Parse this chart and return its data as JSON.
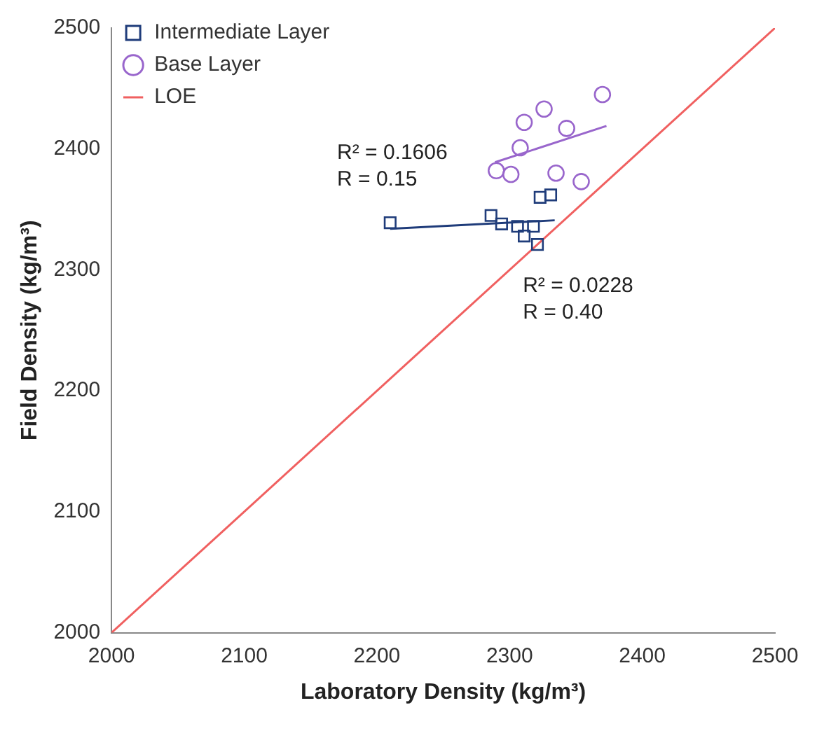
{
  "chart_data": {
    "type": "scatter",
    "xlabel": "Laboratory Density (kg/m³)",
    "ylabel": "Field Density (kg/m³)",
    "xlim": [
      2000,
      2500
    ],
    "ylim": [
      2000,
      2500
    ],
    "xticks": [
      2000,
      2100,
      2200,
      2300,
      2400,
      2500
    ],
    "yticks": [
      2000,
      2100,
      2200,
      2300,
      2400,
      2500
    ],
    "grid": false,
    "legend": "top left",
    "series": [
      {
        "name": "Intermediate Layer",
        "type": "scatter",
        "marker": "square",
        "color": "#1f3c7a",
        "x": [
          2210,
          2286,
          2294,
          2306,
          2318,
          2311,
          2321,
          2323,
          2331
        ],
        "values": [
          2339,
          2345,
          2338,
          2336,
          2336,
          2328,
          2321,
          2360,
          2362
        ]
      },
      {
        "name": "Base Layer",
        "type": "scatter",
        "marker": "circle",
        "color": "#9966cc",
        "x": [
          2370,
          2326,
          2311,
          2343,
          2308,
          2290,
          2301,
          2335,
          2354
        ],
        "values": [
          2445,
          2433,
          2422,
          2417,
          2401,
          2382,
          2379,
          2380,
          2373
        ]
      },
      {
        "name": "LOE",
        "type": "line",
        "marker": "none",
        "color": "#f06060",
        "x": [
          2000,
          2500
        ],
        "values": [
          2000,
          2500
        ]
      },
      {
        "type": "line",
        "marker": "none",
        "color": "#1f3c7a",
        "x": [
          2210,
          2334
        ],
        "values": [
          2334,
          2341
        ]
      },
      {
        "type": "line",
        "marker": "none",
        "color": "#9966cc",
        "x": [
          2289,
          2373
        ],
        "values": [
          2389,
          2419
        ]
      }
    ],
    "annotations": [
      "R² = 0.1606\nR = 0.15",
      "R² = 0.0228\nR = 0.40"
    ]
  }
}
